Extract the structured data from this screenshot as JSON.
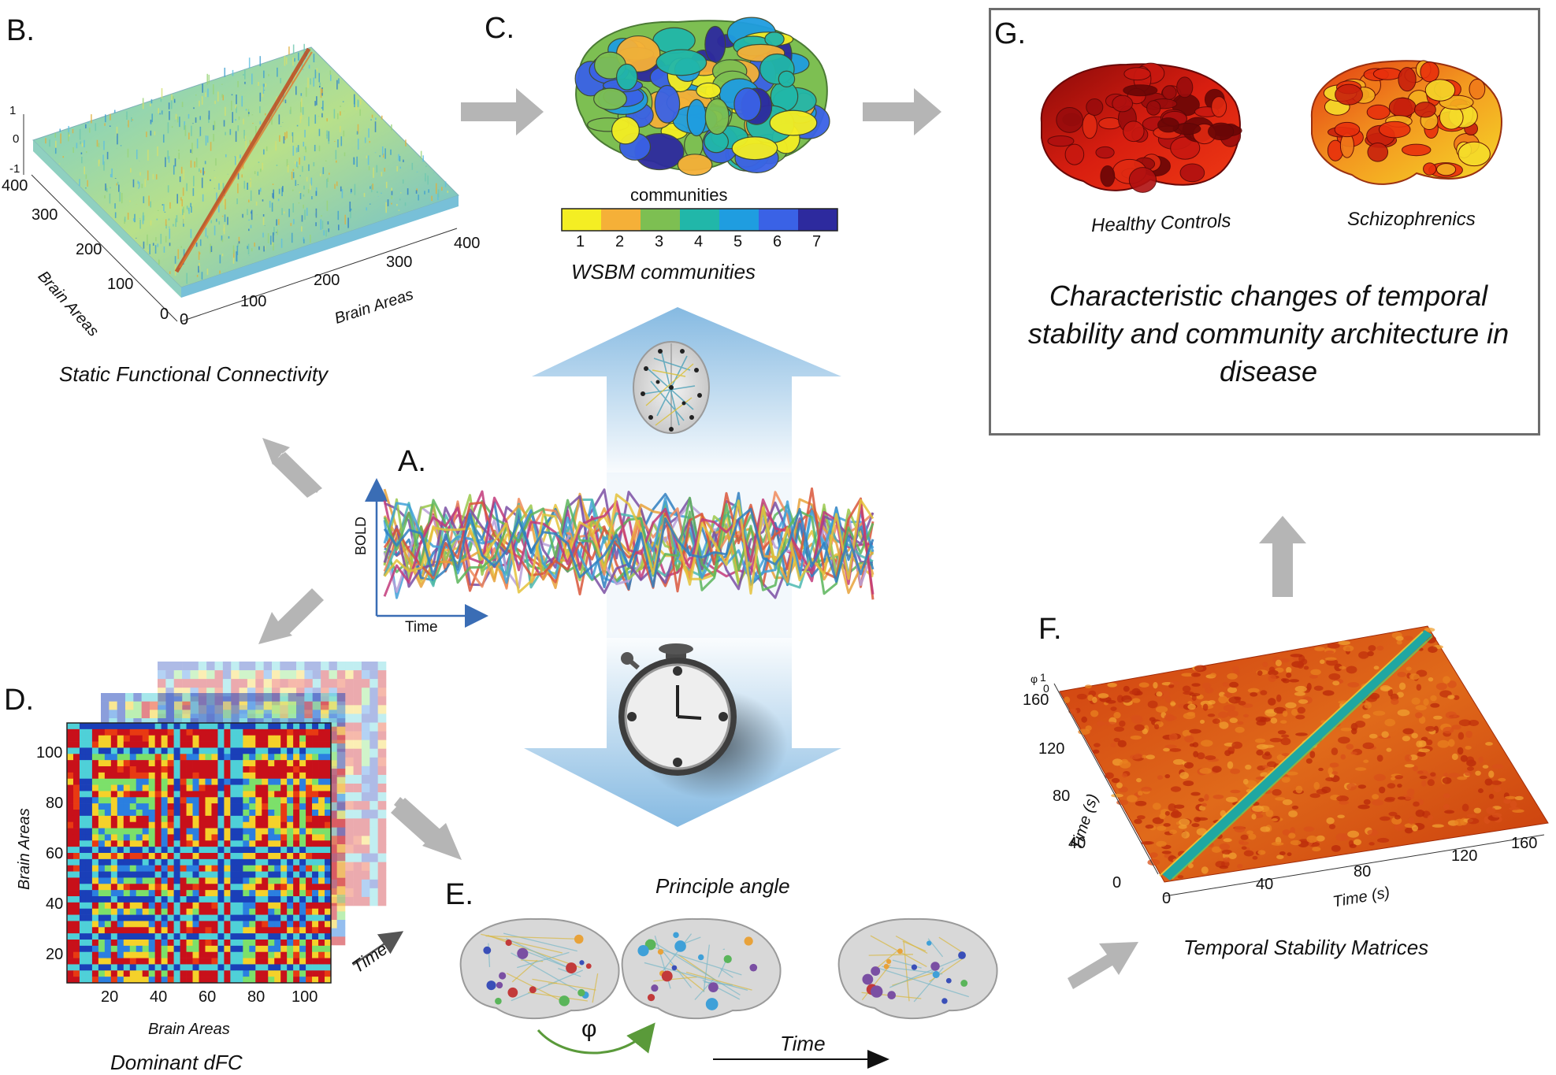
{
  "panels": {
    "A": {
      "label": "A.",
      "ylabel": "BOLD",
      "xlabel": "Time"
    },
    "B": {
      "label": "B.",
      "caption": "Static Functional Connectivity",
      "xlabel": "Brain Areas",
      "ylabel": "Brain Areas",
      "zticks": [
        "1",
        "0",
        "-1"
      ],
      "xticks": [
        "0",
        "100",
        "200",
        "300",
        "400"
      ],
      "yticks": [
        "0",
        "100",
        "200",
        "300",
        "400"
      ]
    },
    "C": {
      "label": "C.",
      "colorbar_title": "communities",
      "caption": "WSBM communities",
      "community_ticks": [
        "1",
        "2",
        "3",
        "4",
        "5",
        "6",
        "7"
      ],
      "community_colors": [
        "#f4ee23",
        "#f5b038",
        "#7dbf52",
        "#21b7a9",
        "#1f9de0",
        "#3a62e6",
        "#2d2a9e"
      ]
    },
    "D": {
      "label": "D.",
      "caption": "Dominant dFC",
      "xlabel": "Brain Areas",
      "ylabel": "Brain Areas",
      "time_label": "Time",
      "xticks": [
        "20",
        "40",
        "60",
        "80",
        "100"
      ],
      "yticks": [
        "100",
        "80",
        "60",
        "40",
        "20"
      ]
    },
    "E": {
      "label": "E.",
      "caption": "Principle angle",
      "phi": "φ",
      "time_label": "Time"
    },
    "F": {
      "label": "F.",
      "caption": "Temporal Stability Matrices",
      "xlabel": "Time (s)",
      "ylabel": "Time (s)",
      "xticks": [
        "0",
        "40",
        "80",
        "120",
        "160"
      ],
      "yticks": [
        "160",
        "120",
        "80",
        "40",
        "0"
      ],
      "zlabel": "φ",
      "zticks": [
        "1",
        "0"
      ]
    },
    "G": {
      "label": "G.",
      "left_brain": "Healthy Controls",
      "right_brain": "Schizophrenics",
      "text": "Characteristic changes of temporal stability and community architecture in disease"
    }
  },
  "colors": {
    "arrow": "#b5b5b5",
    "box_border": "#6d6d6d"
  }
}
